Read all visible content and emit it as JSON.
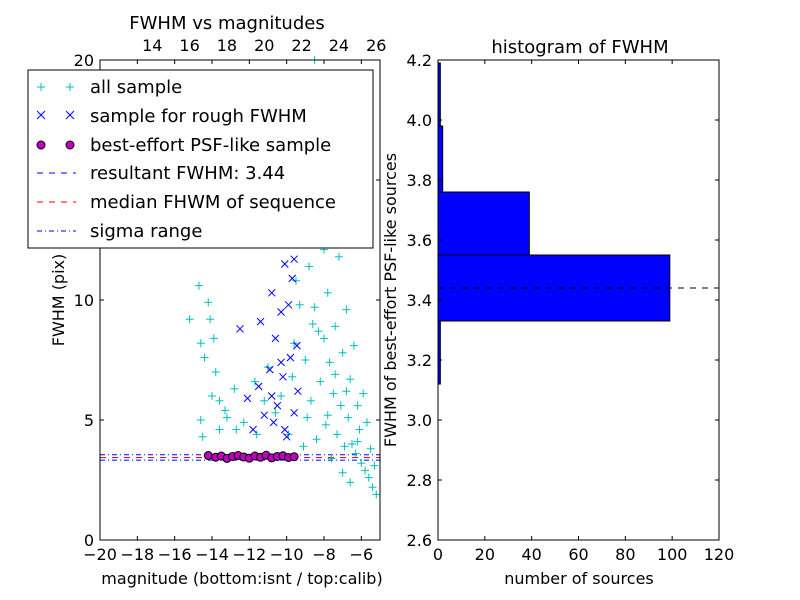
{
  "chart_data": [
    {
      "type": "scatter",
      "title": "FWHM vs magnitudes",
      "xlabel": "magnitude (bottom:isnt / top:calib)",
      "ylabel": "FWHM (pix)",
      "xlim": [
        -20,
        -5
      ],
      "ylim": [
        0,
        20
      ],
      "x_ticks": [
        -20,
        -18,
        -16,
        -14,
        -12,
        -10,
        -8,
        -6
      ],
      "x_tick_labels": [
        "−20",
        "−18",
        "−16",
        "−14",
        "−12",
        "−10",
        "−8",
        "−6"
      ],
      "y_ticks": [
        0,
        5,
        10,
        15,
        20
      ],
      "y_tick_labels": [
        "0",
        "5",
        "10",
        "15",
        "20"
      ],
      "top_axis": {
        "xlim": [
          11.2,
          26.2
        ],
        "ticks": [
          14,
          16,
          18,
          20,
          22,
          24,
          26
        ],
        "tick_labels": [
          "14",
          "16",
          "18",
          "20",
          "22",
          "24",
          "26"
        ]
      },
      "legend": {
        "position": "top-left",
        "entries": [
          {
            "label": "all sample",
            "marker": "+",
            "color": "#00bfbf"
          },
          {
            "label": "sample for rough FWHM",
            "marker": "x",
            "color": "#0000ff"
          },
          {
            "label": "best-effort PSF-like sample",
            "marker": "o",
            "color": "#bf00bf"
          },
          {
            "label": "resultant FWHM: 3.44",
            "marker": "dashed",
            "color": "#0000ff"
          },
          {
            "label": "median FHWM of sequence",
            "marker": "dashed",
            "color": "#ff0000"
          },
          {
            "label": "sigma range",
            "marker": "dashdot",
            "color": "#0000ff"
          }
        ]
      },
      "series": [
        {
          "name": "all sample",
          "marker": "+",
          "color": "#00bfbf",
          "points": [
            [
              -15.2,
              9.2
            ],
            [
              -14.7,
              10.6
            ],
            [
              -14.6,
              8.2
            ],
            [
              -14.2,
              9.9
            ],
            [
              -14.1,
              9.2
            ],
            [
              -14.4,
              7.6
            ],
            [
              -13.9,
              8.4
            ],
            [
              -14.6,
              5.0
            ],
            [
              -14.5,
              4.3
            ],
            [
              -14.0,
              6.0
            ],
            [
              -13.6,
              5.8
            ],
            [
              -13.3,
              5.4
            ],
            [
              -13.6,
              4.6
            ],
            [
              -13.2,
              5.1
            ],
            [
              -13.8,
              7.0
            ],
            [
              -12.7,
              4.6
            ],
            [
              -12.3,
              4.9
            ],
            [
              -12.8,
              6.3
            ],
            [
              -11.6,
              4.4
            ],
            [
              -11.2,
              5.8
            ],
            [
              -11.0,
              7.2
            ],
            [
              -11.7,
              6.6
            ],
            [
              -10.6,
              5.3
            ],
            [
              -10.3,
              6.0
            ],
            [
              -9.9,
              4.4
            ],
            [
              -9.7,
              6.8
            ],
            [
              -9.6,
              8.2
            ],
            [
              -9.5,
              10.8
            ],
            [
              -9.8,
              12.7
            ],
            [
              -9.4,
              14.0
            ],
            [
              -9.3,
              9.8
            ],
            [
              -9.2,
              13.2
            ],
            [
              -9.0,
              7.5
            ],
            [
              -8.9,
              16.1
            ],
            [
              -8.8,
              11.4
            ],
            [
              -8.7,
              5.8
            ],
            [
              -8.6,
              13.9
            ],
            [
              -8.5,
              9.7
            ],
            [
              -8.4,
              17.2
            ],
            [
              -8.3,
              8.7
            ],
            [
              -8.2,
              6.6
            ],
            [
              -8.1,
              19.2
            ],
            [
              -8.0,
              12.1
            ],
            [
              -7.9,
              4.8
            ],
            [
              -7.8,
              10.3
            ],
            [
              -7.7,
              7.4
            ],
            [
              -7.6,
              15.4
            ],
            [
              -7.5,
              6.1
            ],
            [
              -7.4,
              8.9
            ],
            [
              -7.3,
              4.4
            ],
            [
              -7.2,
              11.8
            ],
            [
              -7.1,
              5.6
            ],
            [
              -7.0,
              7.8
            ],
            [
              -6.9,
              3.9
            ],
            [
              -6.8,
              9.6
            ],
            [
              -6.7,
              5.1
            ],
            [
              -6.6,
              6.7
            ],
            [
              -6.5,
              4.0
            ],
            [
              -6.4,
              8.1
            ],
            [
              -6.3,
              3.6
            ],
            [
              -6.2,
              5.6
            ],
            [
              -6.1,
              4.6
            ],
            [
              -6.0,
              3.2
            ],
            [
              -5.9,
              6.1
            ],
            [
              -5.8,
              2.9
            ],
            [
              -5.7,
              4.9
            ],
            [
              -5.6,
              2.6
            ],
            [
              -5.5,
              3.8
            ],
            [
              -5.4,
              2.2
            ],
            [
              -5.3,
              3.1
            ],
            [
              -5.2,
              1.9
            ],
            [
              -8.6,
              9.0
            ],
            [
              -8.0,
              8.4
            ],
            [
              -7.4,
              6.9
            ],
            [
              -7.8,
              5.2
            ],
            [
              -6.8,
              6.2
            ],
            [
              -6.2,
              4.1
            ],
            [
              -8.9,
              5.1
            ],
            [
              -8.4,
              4.2
            ],
            [
              -7.6,
              3.4
            ],
            [
              -7.0,
              2.8
            ],
            [
              -6.6,
              2.4
            ],
            [
              -9.1,
              3.9
            ],
            [
              -8.2,
              12.8
            ],
            [
              -8.8,
              14.6
            ],
            [
              -7.9,
              18.3
            ],
            [
              -8.5,
              20.0
            ],
            [
              -7.3,
              13.6
            ]
          ]
        },
        {
          "name": "sample for rough FWHM",
          "marker": "x",
          "color": "#0000ff",
          "points": [
            [
              -12.5,
              8.8
            ],
            [
              -12.1,
              5.9
            ],
            [
              -11.8,
              4.6
            ],
            [
              -11.5,
              6.4
            ],
            [
              -11.2,
              5.2
            ],
            [
              -11.0,
              12.3
            ],
            [
              -10.9,
              7.1
            ],
            [
              -10.8,
              10.3
            ],
            [
              -10.7,
              4.9
            ],
            [
              -10.6,
              8.4
            ],
            [
              -10.5,
              5.6
            ],
            [
              -10.4,
              13.2
            ],
            [
              -10.3,
              9.5
            ],
            [
              -10.2,
              6.8
            ],
            [
              -10.1,
              11.5
            ],
            [
              -10.0,
              4.3
            ],
            [
              -9.9,
              14.6
            ],
            [
              -9.8,
              7.6
            ],
            [
              -9.7,
              10.9
            ],
            [
              -9.6,
              5.3
            ],
            [
              -9.5,
              12.4
            ],
            [
              -9.45,
              8.1
            ],
            [
              -9.4,
              6.2
            ],
            [
              -10.8,
              6.0
            ],
            [
              -10.3,
              7.4
            ],
            [
              -9.9,
              9.8
            ],
            [
              -9.6,
              11.7
            ],
            [
              -11.4,
              9.1
            ],
            [
              -10.6,
              14.3
            ],
            [
              -10.1,
              4.6
            ]
          ]
        },
        {
          "name": "best-effort PSF-like sample",
          "marker": "o",
          "color": "#bf00bf",
          "points": [
            [
              -14.2,
              3.52
            ],
            [
              -13.8,
              3.45
            ],
            [
              -13.5,
              3.5
            ],
            [
              -13.2,
              3.4
            ],
            [
              -12.9,
              3.48
            ],
            [
              -12.6,
              3.52
            ],
            [
              -12.3,
              3.46
            ],
            [
              -12.0,
              3.41
            ],
            [
              -11.7,
              3.5
            ],
            [
              -11.4,
              3.45
            ],
            [
              -11.1,
              3.53
            ],
            [
              -10.8,
              3.42
            ],
            [
              -10.5,
              3.48
            ],
            [
              -10.2,
              3.51
            ],
            [
              -9.9,
              3.44
            ],
            [
              -9.6,
              3.47
            ]
          ]
        }
      ],
      "lines": [
        {
          "label": "resultant FWHM: 3.44",
          "y": 3.44,
          "style": "dashed",
          "color": "#0000ff"
        },
        {
          "label": "median FHWM of sequence",
          "y": 3.44,
          "style": "dashed",
          "color": "#ff0000"
        },
        {
          "label": "sigma range",
          "y": 3.33,
          "style": "dashdot",
          "color": "#0000ff"
        },
        {
          "label": "sigma range",
          "y": 3.55,
          "style": "dashdot",
          "color": "#0000ff"
        }
      ]
    },
    {
      "type": "bar",
      "orientation": "horizontal",
      "title": "histogram of FWHM",
      "xlabel": "number of sources",
      "ylabel": "FWHM of best-effort PSF-like sources",
      "xlim": [
        0,
        120
      ],
      "ylim": [
        2.6,
        4.2
      ],
      "x_ticks": [
        0,
        20,
        40,
        60,
        80,
        100,
        120
      ],
      "x_tick_labels": [
        "0",
        "20",
        "40",
        "60",
        "80",
        "100",
        "120"
      ],
      "y_ticks": [
        2.6,
        2.8,
        3.0,
        3.2,
        3.4,
        3.6,
        3.8,
        4.0,
        4.2
      ],
      "y_tick_labels": [
        "2.6",
        "2.8",
        "3.0",
        "3.2",
        "3.4",
        "3.6",
        "3.8",
        "4.0",
        "4.2"
      ],
      "bar_color": "#0000ff",
      "bins": [
        {
          "y0": 3.12,
          "y1": 3.33,
          "count": 1
        },
        {
          "y0": 3.33,
          "y1": 3.55,
          "count": 99
        },
        {
          "y0": 3.55,
          "y1": 3.76,
          "count": 39
        },
        {
          "y0": 3.76,
          "y1": 3.98,
          "count": 2
        },
        {
          "y0": 3.98,
          "y1": 4.19,
          "count": 1
        }
      ],
      "reference_line": {
        "y": 3.44,
        "style": "dashed",
        "color": "#000000"
      }
    }
  ]
}
